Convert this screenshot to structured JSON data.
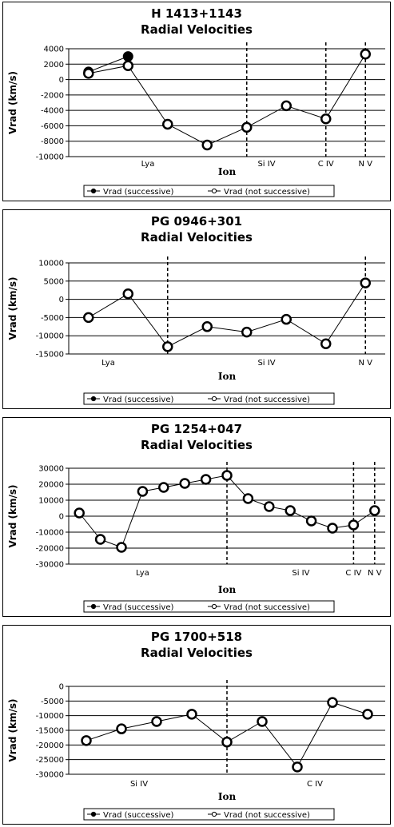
{
  "chart_data": [
    {
      "type": "line",
      "title": "H 1413+1143",
      "subtitle": "Radial Velocities",
      "xlabel": "Ion",
      "ylabel": "Vrad (km/s)",
      "ylim": [
        -10000,
        4000
      ],
      "yticks": [
        4000,
        2000,
        0,
        -2000,
        -4000,
        -6000,
        -8000,
        -10000
      ],
      "group_labels": [
        "Lya",
        "Si IV",
        "C IV",
        "N V"
      ],
      "series": [
        {
          "name": "Vrad (successive)",
          "values": [
            1000,
            3000,
            null,
            null,
            null,
            null,
            null,
            null
          ]
        },
        {
          "name": "Vrad (not successive)",
          "values": [
            800,
            1800,
            -5800,
            -8500,
            -6200,
            -3400,
            -5100,
            3300
          ]
        }
      ],
      "legend": [
        "Vrad (successive)",
        "Vrad (not successive)"
      ],
      "grid": true,
      "legend_position": "bottom"
    },
    {
      "type": "line",
      "title": "PG 0946+301",
      "subtitle": "Radial Velocities",
      "xlabel": "Ion",
      "ylabel": "Vrad (km/s)",
      "ylim": [
        -15000,
        10000
      ],
      "yticks": [
        10000,
        5000,
        0,
        -5000,
        -10000,
        -15000
      ],
      "group_labels": [
        "Lya",
        "Si IV",
        "N V"
      ],
      "series": [
        {
          "name": "Vrad (not successive)",
          "values": [
            -5000,
            1500,
            -13000,
            -7500,
            -9000,
            -5500,
            -12200,
            4500
          ]
        }
      ],
      "legend": [
        "Vrad (successive)",
        "Vrad (not successive)"
      ],
      "grid": true,
      "legend_position": "bottom"
    },
    {
      "type": "line",
      "title": "PG 1254+047",
      "subtitle": "Radial Velocities",
      "xlabel": "Ion",
      "ylabel": "Vrad (km/s)",
      "ylim": [
        -30000,
        30000
      ],
      "yticks": [
        30000,
        20000,
        10000,
        0,
        -10000,
        -20000,
        -30000
      ],
      "group_labels": [
        "Lya",
        "Si IV",
        "C IV",
        "N V"
      ],
      "series": [
        {
          "name": "Vrad (not successive)",
          "values": [
            2000,
            -14500,
            -19500,
            15500,
            18000,
            20500,
            23000,
            25500,
            11000,
            6000,
            3500,
            -3000,
            -7500,
            -5500,
            3500
          ]
        }
      ],
      "legend": [
        "Vrad (successive)",
        "Vrad (not successive)"
      ],
      "grid": true,
      "legend_position": "bottom"
    },
    {
      "type": "line",
      "title": "PG 1700+518",
      "subtitle": "Radial Velocities",
      "xlabel": "Ion",
      "ylabel": "Vrad (km/s)",
      "ylim": [
        -30000,
        0
      ],
      "yticks": [
        0,
        -5000,
        -10000,
        -15000,
        -20000,
        -25000,
        -30000
      ],
      "group_labels": [
        "Si IV",
        "C IV"
      ],
      "series": [
        {
          "name": "Vrad (not successive)",
          "values": [
            -18500,
            -14500,
            -12000,
            -9500,
            -19000,
            -12000,
            -27500,
            -5500,
            -9500
          ]
        }
      ],
      "legend": [
        "Vrad (successive)",
        "Vrad (not successive)"
      ],
      "grid": true,
      "legend_position": "bottom"
    }
  ]
}
